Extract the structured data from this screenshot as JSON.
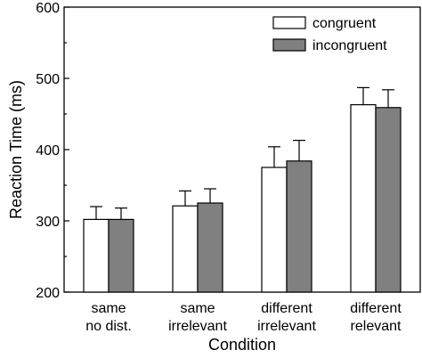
{
  "chart_data": {
    "type": "bar",
    "xlabel": "Condition",
    "ylabel": "Reaction Time (ms)",
    "ylim": [
      200,
      600
    ],
    "yticks": [
      200,
      300,
      400,
      500,
      600
    ],
    "grid": false,
    "legend_position": "top-right",
    "categories": [
      [
        "same",
        "no dist."
      ],
      [
        "same",
        "irrelevant"
      ],
      [
        "different",
        "irrelevant"
      ],
      [
        "different",
        "relevant"
      ]
    ],
    "series": [
      {
        "name": "congruent",
        "color": "#ffffff",
        "values": [
          302,
          321,
          375,
          463
        ],
        "error": [
          18,
          21,
          29,
          24
        ]
      },
      {
        "name": "incongruent",
        "color": "#808080",
        "values": [
          302,
          325,
          384,
          459
        ],
        "error": [
          16,
          20,
          29,
          25
        ]
      }
    ]
  }
}
